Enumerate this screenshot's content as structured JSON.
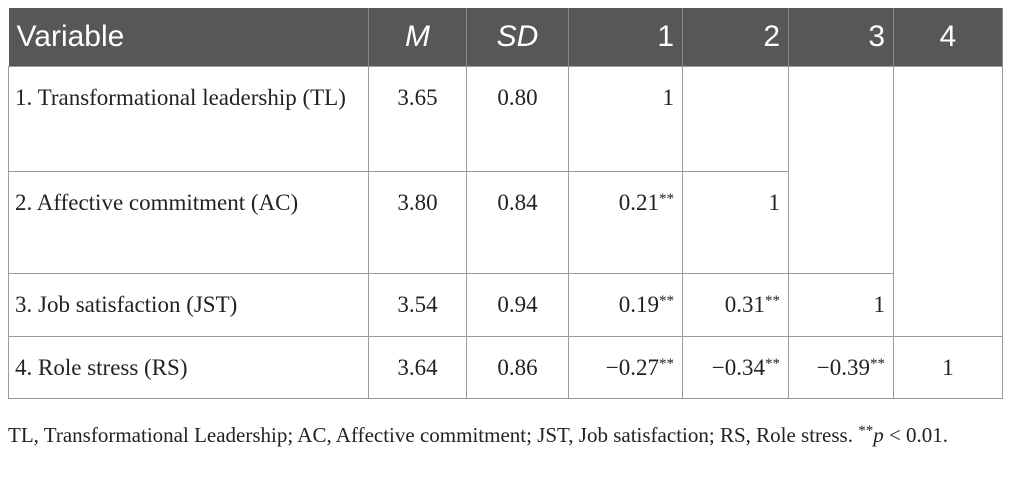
{
  "table": {
    "header": [
      "Variable",
      "M",
      "SD",
      "1",
      "2",
      "3",
      "4"
    ],
    "rows": [
      [
        "1. Transformational leadership (TL)",
        "3.65",
        "0.80",
        "1"
      ],
      [
        "2. Affective commitment (AC)",
        "3.80",
        "0.84",
        "0.21**",
        "1"
      ],
      [
        "3. Job satisfaction (JST)",
        "3.54",
        "0.94",
        "0.19**",
        "0.31**",
        "1"
      ],
      [
        "4. Role stress (RS)",
        "3.64",
        "0.86",
        "−0.27**",
        "−0.34**",
        "−0.39**",
        "1"
      ]
    ]
  },
  "note": {
    "text": "TL, Transformational Leadership; AC, Affective commitment; JST, Job satisfaction; RS, Role stress. ",
    "marker": "**",
    "symbol": "p",
    "threshold": " < 0.01."
  }
}
